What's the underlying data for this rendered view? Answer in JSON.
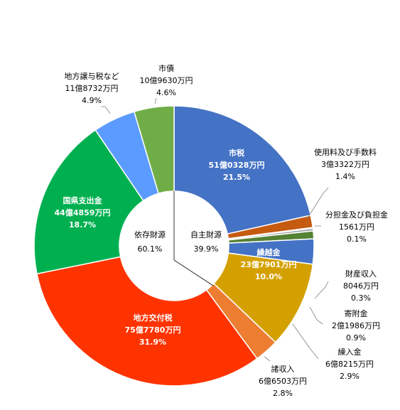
{
  "chart_data": {
    "type": "pie",
    "variant": "donut",
    "start": "top",
    "direction": "clockwise",
    "categories": [
      "市税",
      "使用料及び手数料",
      "分担金及び負担金",
      "財産収入",
      "寄附金",
      "繰入金",
      "繰越金",
      "諸収入",
      "地方交付税",
      "国県支出金",
      "地方譲与税など",
      "市債"
    ],
    "values": [
      21.5,
      1.4,
      0.1,
      0.3,
      0.9,
      2.9,
      10.0,
      2.8,
      31.9,
      18.7,
      4.9,
      4.6
    ],
    "amounts": [
      "51億0328万円",
      "3億3322万円",
      "1561万円",
      "8046万円",
      "2億1986万円",
      "6億8215万円",
      "23億7901万円",
      "6億6503万円",
      "75億7780万円",
      "44億4859万円",
      "11億8732万円",
      "10億9630万円"
    ],
    "percent_labels": [
      "21.5%",
      "1.4%",
      "0.1%",
      "0.3%",
      "0.9%",
      "2.9%",
      "10.0%",
      "2.8%",
      "31.9%",
      "18.7%",
      "4.9%",
      "4.6%"
    ],
    "colors": [
      "#4472C4",
      "#C55A11",
      "#7F7F7F",
      "#A5A5A5",
      "#548235",
      "#4472C4",
      "#D4A000",
      "#ED7D31",
      "#FF3300",
      "#00B050",
      "#5B9BFF",
      "#70AD47"
    ],
    "center_labels": {
      "left": {
        "label": "依存財源",
        "value": "60.1%"
      },
      "right": {
        "label": "自主財源",
        "value": "39.9%"
      }
    }
  }
}
